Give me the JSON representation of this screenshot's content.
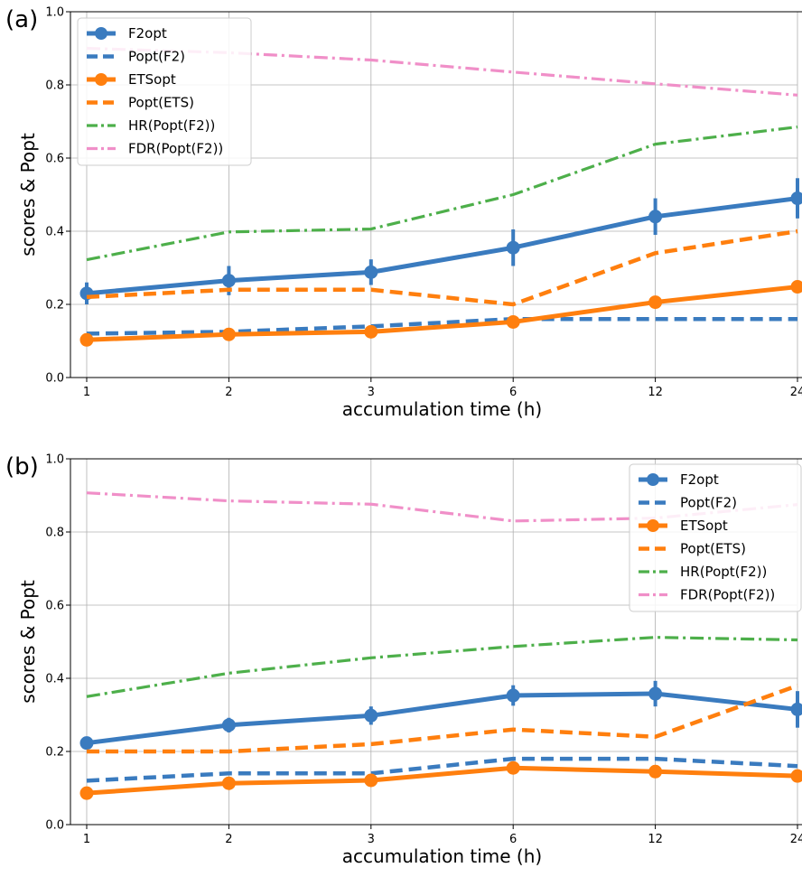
{
  "figure": {
    "panels": [
      "(a)",
      "(b)"
    ]
  },
  "chart_data": [
    {
      "type": "line",
      "panel_label": "(a)",
      "xlabel": "accumulation time (h)",
      "ylabel": "scores & Popt",
      "categories": [
        "1",
        "2",
        "3",
        "6",
        "12",
        "24"
      ],
      "ylim": [
        0.0,
        1.0
      ],
      "yticks": [
        "0.0",
        "0.2",
        "0.4",
        "0.6",
        "0.8",
        "1.0"
      ],
      "grid": true,
      "legend_position": "upper-left",
      "series": [
        {
          "name": "F2opt",
          "color": "#3a7bbf",
          "style": "solid-marker",
          "values": [
            0.23,
            0.265,
            0.288,
            0.355,
            0.44,
            0.49
          ],
          "errors": [
            0.03,
            0.04,
            0.035,
            0.05,
            0.05,
            0.055
          ]
        },
        {
          "name": "Popt(F2)",
          "color": "#3a7bbf",
          "style": "dashed",
          "values": [
            0.12,
            0.125,
            0.14,
            0.16,
            0.16,
            0.16
          ]
        },
        {
          "name": "ETSopt",
          "color": "#ff7f0e",
          "style": "solid-marker",
          "values": [
            0.103,
            0.118,
            0.125,
            0.152,
            0.206,
            0.248
          ]
        },
        {
          "name": "Popt(ETS)",
          "color": "#ff7f0e",
          "style": "dashed",
          "values": [
            0.22,
            0.24,
            0.24,
            0.2,
            0.34,
            0.4
          ]
        },
        {
          "name": "HR(Popt(F2))",
          "color": "#4daf4a",
          "style": "dashdot",
          "values": [
            0.322,
            0.398,
            0.406,
            0.5,
            0.638,
            0.685
          ]
        },
        {
          "name": "FDR(Popt(F2))",
          "color": "#f08fc8",
          "style": "dashdot",
          "values": [
            0.9,
            0.888,
            0.868,
            0.835,
            0.803,
            0.772
          ]
        }
      ]
    },
    {
      "type": "line",
      "panel_label": "(b)",
      "xlabel": "accumulation time (h)",
      "ylabel": "scores & Popt",
      "categories": [
        "1",
        "2",
        "3",
        "6",
        "12",
        "24"
      ],
      "ylim": [
        0.0,
        1.0
      ],
      "yticks": [
        "0.0",
        "0.2",
        "0.4",
        "0.6",
        "0.8",
        "1.0"
      ],
      "grid": true,
      "legend_position": "upper-right",
      "series": [
        {
          "name": "F2opt",
          "color": "#3a7bbf",
          "style": "solid-marker",
          "values": [
            0.223,
            0.272,
            0.298,
            0.353,
            0.358,
            0.315
          ],
          "errors": [
            0.015,
            0.02,
            0.025,
            0.028,
            0.035,
            0.05
          ]
        },
        {
          "name": "Popt(F2)",
          "color": "#3a7bbf",
          "style": "dashed",
          "values": [
            0.12,
            0.14,
            0.14,
            0.18,
            0.18,
            0.16
          ]
        },
        {
          "name": "ETSopt",
          "color": "#ff7f0e",
          "style": "solid-marker",
          "values": [
            0.086,
            0.113,
            0.121,
            0.155,
            0.145,
            0.133
          ]
        },
        {
          "name": "Popt(ETS)",
          "color": "#ff7f0e",
          "style": "dashed",
          "values": [
            0.2,
            0.2,
            0.22,
            0.26,
            0.24,
            0.38
          ]
        },
        {
          "name": "HR(Popt(F2))",
          "color": "#4daf4a",
          "style": "dashdot",
          "values": [
            0.35,
            0.414,
            0.456,
            0.487,
            0.512,
            0.505
          ]
        },
        {
          "name": "FDR(Popt(F2))",
          "color": "#f08fc8",
          "style": "dashdot",
          "values": [
            0.907,
            0.885,
            0.876,
            0.83,
            0.838,
            0.875
          ]
        }
      ]
    }
  ]
}
